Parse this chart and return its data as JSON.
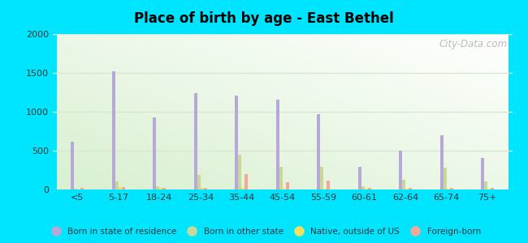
{
  "title": "Place of birth by age - East Bethel",
  "categories": [
    "<5",
    "5-17",
    "18-24",
    "25-34",
    "35-44",
    "45-54",
    "55-59",
    "60-61",
    "62-64",
    "65-74",
    "75+"
  ],
  "born_in_state": [
    610,
    1520,
    930,
    1240,
    1210,
    1160,
    970,
    290,
    500,
    700,
    410
  ],
  "born_other_state": [
    15,
    100,
    40,
    185,
    450,
    295,
    295,
    40,
    120,
    280,
    105
  ],
  "native_outside_us": [
    5,
    30,
    20,
    20,
    20,
    10,
    10,
    10,
    10,
    10,
    10
  ],
  "foreign_born": [
    20,
    30,
    25,
    25,
    195,
    90,
    110,
    20,
    20,
    20,
    25
  ],
  "ylim": [
    0,
    2000
  ],
  "yticks": [
    0,
    500,
    1000,
    1500,
    2000
  ],
  "bar_color_state": "#b8a8d8",
  "bar_color_other": "#c8d898",
  "bar_color_native": "#f0e060",
  "bar_color_foreign": "#f0a898",
  "background_outer": "#00e5ff",
  "grid_color": "#d8e8d0",
  "legend_labels": [
    "Born in state of residence",
    "Born in other state",
    "Native, outside of US",
    "Foreign-born"
  ],
  "watermark": "City-Data.com"
}
